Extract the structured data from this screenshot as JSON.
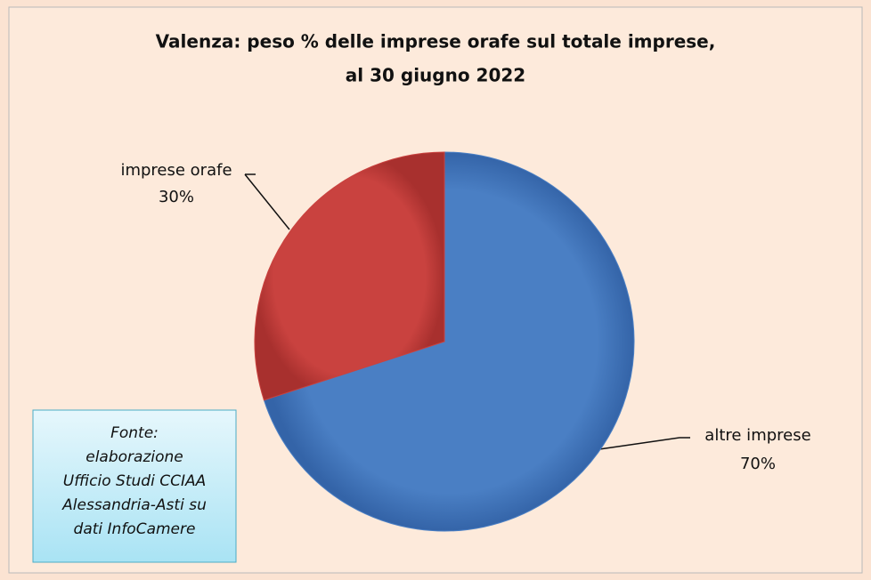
{
  "chart_data": {
    "type": "pie",
    "title": [
      "Valenza: peso % delle imprese orafe sul totale imprese,",
      "al 30 giugno 2022"
    ],
    "categories": [
      "altre imprese",
      "imprese orafe"
    ],
    "values": [
      70,
      30
    ],
    "value_labels": [
      "70%",
      "30%"
    ],
    "colors": [
      "#4a7fc4",
      "#c9423f"
    ],
    "annotation": [
      "Fonte:",
      "elaborazione",
      "Ufficio Studi CCIAA",
      "Alessandria-Asti su",
      "dati InfoCamere"
    ]
  }
}
